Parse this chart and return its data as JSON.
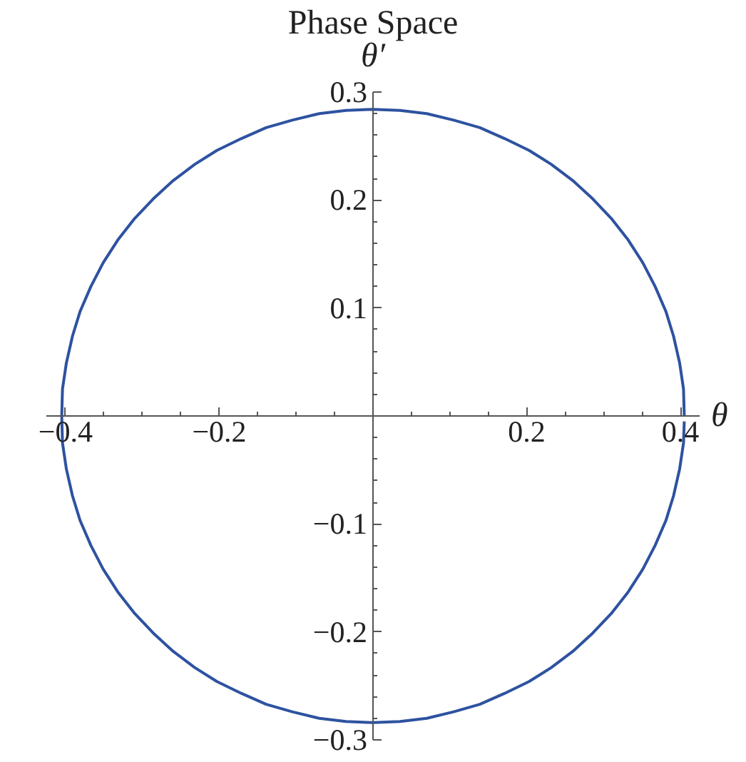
{
  "chart_data": {
    "type": "line",
    "title": "Phase Space",
    "xlabel": "θ",
    "ylabel": "θ′",
    "xlim": [
      -0.425,
      0.425
    ],
    "ylim": [
      -0.3,
      0.3
    ],
    "xticks": [
      {
        "value": -0.4,
        "label": "−0.4"
      },
      {
        "value": -0.35,
        "label": null
      },
      {
        "value": -0.3,
        "label": null
      },
      {
        "value": -0.25,
        "label": null
      },
      {
        "value": -0.2,
        "label": "−0.2"
      },
      {
        "value": -0.15,
        "label": null
      },
      {
        "value": -0.1,
        "label": null
      },
      {
        "value": -0.05,
        "label": null
      },
      {
        "value": 0.05,
        "label": null
      },
      {
        "value": 0.1,
        "label": null
      },
      {
        "value": 0.15,
        "label": null
      },
      {
        "value": 0.2,
        "label": "0.2"
      },
      {
        "value": 0.25,
        "label": null
      },
      {
        "value": 0.3,
        "label": null
      },
      {
        "value": 0.35,
        "label": null
      },
      {
        "value": 0.4,
        "label": "0.4"
      }
    ],
    "yticks": [
      {
        "value": -0.3,
        "label": "−0.3"
      },
      {
        "value": -0.28,
        "label": null
      },
      {
        "value": -0.26,
        "label": null
      },
      {
        "value": -0.24,
        "label": null
      },
      {
        "value": -0.22,
        "label": null
      },
      {
        "value": -0.2,
        "label": "−0.2"
      },
      {
        "value": -0.18,
        "label": null
      },
      {
        "value": -0.16,
        "label": null
      },
      {
        "value": -0.14,
        "label": null
      },
      {
        "value": -0.12,
        "label": null
      },
      {
        "value": -0.1,
        "label": "−0.1"
      },
      {
        "value": -0.08,
        "label": null
      },
      {
        "value": -0.06,
        "label": null
      },
      {
        "value": -0.04,
        "label": null
      },
      {
        "value": -0.02,
        "label": null
      },
      {
        "value": 0.02,
        "label": null
      },
      {
        "value": 0.04,
        "label": null
      },
      {
        "value": 0.06,
        "label": null
      },
      {
        "value": 0.08,
        "label": null
      },
      {
        "value": 0.1,
        "label": "0.1"
      },
      {
        "value": 0.12,
        "label": null
      },
      {
        "value": 0.14,
        "label": null
      },
      {
        "value": 0.16,
        "label": null
      },
      {
        "value": 0.18,
        "label": null
      },
      {
        "value": 0.2,
        "label": "0.2"
      },
      {
        "value": 0.22,
        "label": null
      },
      {
        "value": 0.24,
        "label": null
      },
      {
        "value": 0.26,
        "label": null
      },
      {
        "value": 0.28,
        "label": null
      },
      {
        "value": 0.3,
        "label": "0.3"
      }
    ],
    "grid": false,
    "line_style": "solid",
    "series": [
      {
        "color": "#2e52a0",
        "x": [
          0.405,
          0.404,
          0.399,
          0.391,
          0.381,
          0.367,
          0.351,
          0.332,
          0.31,
          0.286,
          0.26,
          0.232,
          0.203,
          0.171,
          0.139,
          0.105,
          0.07,
          0.035,
          0,
          -0.035,
          -0.07,
          -0.105,
          -0.139,
          -0.171,
          -0.203,
          -0.232,
          -0.26,
          -0.286,
          -0.31,
          -0.332,
          -0.351,
          -0.367,
          -0.381,
          -0.391,
          -0.399,
          -0.404,
          -0.405,
          -0.404,
          -0.399,
          -0.391,
          -0.381,
          -0.367,
          -0.351,
          -0.332,
          -0.31,
          -0.286,
          -0.26,
          -0.232,
          -0.203,
          -0.171,
          -0.139,
          -0.105,
          -0.07,
          -0.035,
          0,
          0.035,
          0.07,
          0.105,
          0.139,
          0.171,
          0.203,
          0.232,
          0.26,
          0.286,
          0.31,
          0.332,
          0.351,
          0.367,
          0.381,
          0.391,
          0.399,
          0.404,
          0.405
        ],
        "values": [
          0,
          0.025,
          0.049,
          0.074,
          0.097,
          0.12,
          0.142,
          0.163,
          0.183,
          0.201,
          0.218,
          0.233,
          0.246,
          0.257,
          0.267,
          0.274,
          0.28,
          0.283,
          0.284,
          0.283,
          0.28,
          0.274,
          0.267,
          0.257,
          0.246,
          0.233,
          0.218,
          0.201,
          0.183,
          0.163,
          0.142,
          0.12,
          0.097,
          0.074,
          0.049,
          0.025,
          0,
          -0.025,
          -0.049,
          -0.074,
          -0.097,
          -0.12,
          -0.142,
          -0.163,
          -0.183,
          -0.201,
          -0.218,
          -0.233,
          -0.246,
          -0.257,
          -0.267,
          -0.274,
          -0.28,
          -0.283,
          -0.284,
          -0.283,
          -0.28,
          -0.274,
          -0.267,
          -0.257,
          -0.246,
          -0.233,
          -0.218,
          -0.201,
          -0.183,
          -0.163,
          -0.142,
          -0.12,
          -0.097,
          -0.074,
          -0.049,
          -0.025,
          -0.005
        ]
      }
    ]
  }
}
